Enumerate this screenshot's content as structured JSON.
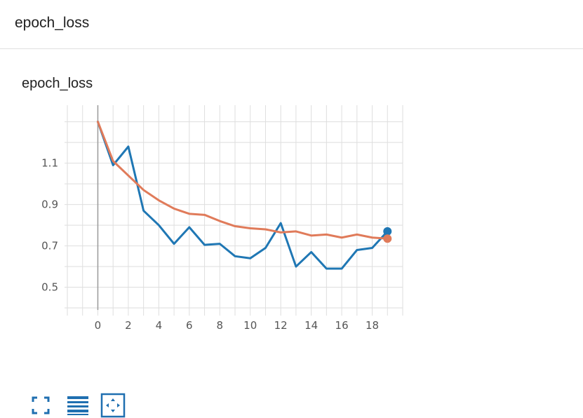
{
  "section": {
    "title": "epoch_loss"
  },
  "card": {
    "title": "epoch_loss"
  },
  "chart_data": {
    "type": "line",
    "title": "epoch_loss",
    "xlabel": "",
    "ylabel": "",
    "xlim": [
      -2,
      20
    ],
    "ylim": [
      0.39,
      1.38
    ],
    "x_ticks": [
      0,
      2,
      4,
      6,
      8,
      10,
      12,
      14,
      16,
      18
    ],
    "y_ticks": [
      0.5,
      0.7,
      0.9,
      1.1
    ],
    "x_tick_labels": [
      "0",
      "2",
      "4",
      "6",
      "8",
      "10",
      "12",
      "14",
      "16",
      "18"
    ],
    "y_tick_labels": [
      "0.5",
      "0.7",
      "0.9",
      "1.1"
    ],
    "grid": true,
    "series": [
      {
        "color": "#1f77b4",
        "x": [
          0,
          1,
          2,
          3,
          4,
          5,
          6,
          7,
          8,
          9,
          10,
          11,
          12,
          13,
          14,
          15,
          16,
          17,
          18,
          19
        ],
        "values": [
          1.3,
          1.09,
          1.18,
          0.87,
          0.8,
          0.71,
          0.79,
          0.705,
          0.71,
          0.65,
          0.64,
          0.69,
          0.81,
          0.6,
          0.67,
          0.59,
          0.59,
          0.68,
          0.69,
          0.77
        ]
      },
      {
        "color": "#e07b5a",
        "x": [
          0,
          1,
          2,
          3,
          4,
          5,
          6,
          7,
          8,
          9,
          10,
          11,
          12,
          13,
          14,
          15,
          16,
          17,
          18,
          19
        ],
        "values": [
          1.3,
          1.11,
          1.04,
          0.97,
          0.92,
          0.88,
          0.855,
          0.85,
          0.82,
          0.795,
          0.785,
          0.78,
          0.765,
          0.77,
          0.75,
          0.755,
          0.74,
          0.755,
          0.74,
          0.735
        ]
      }
    ]
  },
  "toolbar": {
    "buttons": [
      {
        "name": "fit-domain-icon"
      },
      {
        "name": "log-scale-icon"
      },
      {
        "name": "expand-chart-icon"
      }
    ]
  }
}
